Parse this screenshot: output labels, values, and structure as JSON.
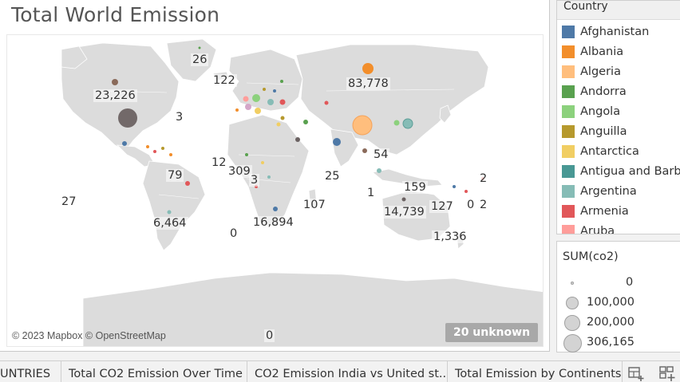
{
  "sheet": {
    "title": "Total World Emission",
    "copyright": "© 2023 Mapbox © OpenStreetMap",
    "unknown_badge": "20 unknown",
    "map_labels": [
      {
        "id": "greenland",
        "text": "26"
      },
      {
        "id": "iceland",
        "text": "122"
      },
      {
        "id": "usa",
        "text": "23,226"
      },
      {
        "id": "caribbean",
        "text": "3"
      },
      {
        "id": "russia",
        "text": "83,778"
      },
      {
        "id": "southeast-asia",
        "text": "54"
      },
      {
        "id": "west-africa",
        "text": "12"
      },
      {
        "id": "central-africa",
        "text": "309"
      },
      {
        "id": "gulf-guinea",
        "text": "3"
      },
      {
        "id": "brazil",
        "text": "79"
      },
      {
        "id": "indian-ocean",
        "text": "25"
      },
      {
        "id": "pacific-west",
        "text": "27"
      },
      {
        "id": "papua",
        "text": "159"
      },
      {
        "id": "indonesia",
        "text": "1"
      },
      {
        "id": "madagascar",
        "text": "107"
      },
      {
        "id": "australia",
        "text": "14,739"
      },
      {
        "id": "new-caledonia",
        "text": "127"
      },
      {
        "id": "fiji",
        "text": "0"
      },
      {
        "id": "pacific-east",
        "text": "2"
      },
      {
        "id": "pacific-east-2",
        "text": "2"
      },
      {
        "id": "south-america",
        "text": "6,464"
      },
      {
        "id": "south-atlantic",
        "text": "0"
      },
      {
        "id": "south-africa",
        "text": "16,894"
      },
      {
        "id": "new-zealand",
        "text": "1,336"
      },
      {
        "id": "antarctica",
        "text": "0"
      }
    ]
  },
  "legend_country": {
    "title": "Country",
    "items": [
      {
        "label": "Afghanistan",
        "color": "#4e79a7"
      },
      {
        "label": "Albania",
        "color": "#f28e2b"
      },
      {
        "label": "Algeria",
        "color": "#ffbe7d"
      },
      {
        "label": "Andorra",
        "color": "#59a14f"
      },
      {
        "label": "Angola",
        "color": "#8cd17d"
      },
      {
        "label": "Anguilla",
        "color": "#b6992d"
      },
      {
        "label": "Antarctica",
        "color": "#f1ce63"
      },
      {
        "label": "Antigua and Barb..",
        "color": "#499894"
      },
      {
        "label": "Argentina",
        "color": "#86bcb6"
      },
      {
        "label": "Armenia",
        "color": "#e15759"
      },
      {
        "label": "Aruba",
        "color": "#ff9d9a"
      }
    ]
  },
  "legend_size": {
    "title": "SUM(co2)",
    "items": [
      {
        "label": "0",
        "value": 0
      },
      {
        "label": "100,000",
        "value": 100000
      },
      {
        "label": "200,000",
        "value": 200000
      },
      {
        "label": "306,165",
        "value": 306165
      }
    ]
  },
  "tabs": [
    {
      "label": "UNTRIES"
    },
    {
      "label": "Total CO2 Emission Over Time"
    },
    {
      "label": "CO2 Emission India vs United st..."
    },
    {
      "label": "Total Emission by Continents"
    }
  ],
  "tab_icons": [
    "new-dashboard-icon",
    "new-story-icon"
  ]
}
